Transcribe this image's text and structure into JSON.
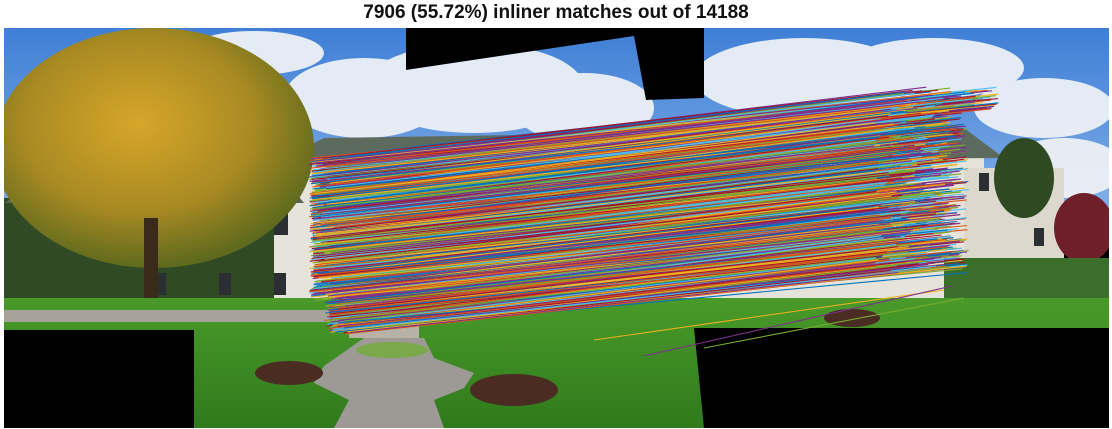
{
  "figure": {
    "title": "7906 (55.72%) inliner matches out of 14188",
    "match_palette": [
      "#0072BD",
      "#D95319",
      "#EDB120",
      "#7E2F8E",
      "#77AC30",
      "#4DBEEE",
      "#A2142F"
    ]
  }
}
